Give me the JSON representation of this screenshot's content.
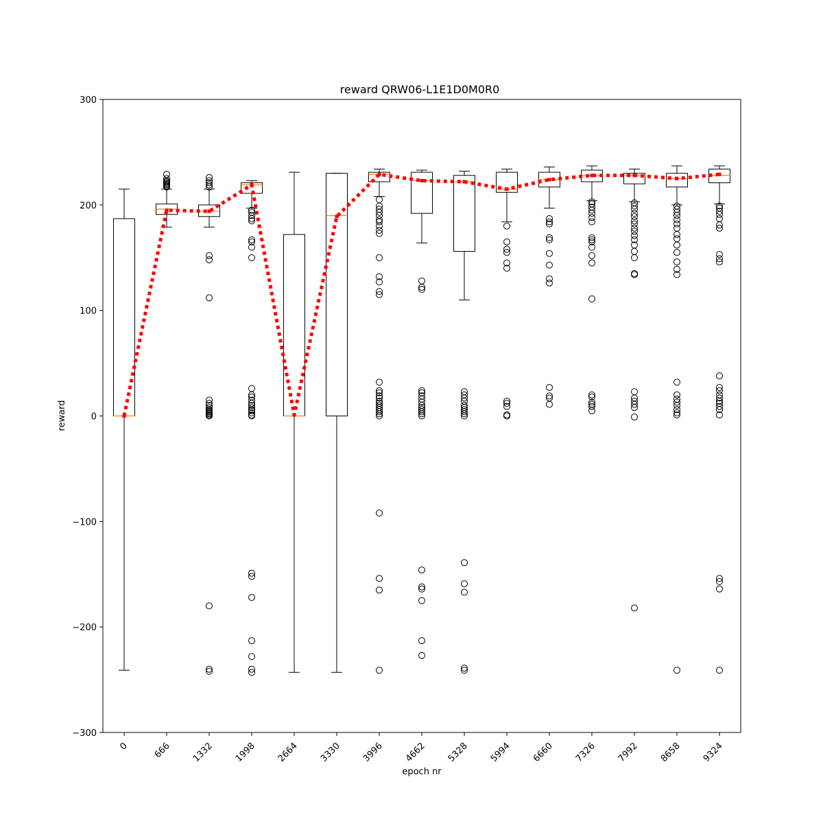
{
  "chart_data": {
    "type": "box",
    "title": "reward QRW06-L1E1D0M0R0",
    "xlabel": "epoch nr",
    "ylabel": "reward",
    "ylim": [
      -300,
      300
    ],
    "yticks": [
      -300,
      -200,
      -100,
      0,
      100,
      200,
      300
    ],
    "ytick_labels": [
      "−300",
      "−200",
      "−100",
      "0",
      "100",
      "200",
      "300"
    ],
    "categories": [
      "0",
      "666",
      "1332",
      "1998",
      "2664",
      "3330",
      "3996",
      "4662",
      "5328",
      "5994",
      "6660",
      "7326",
      "7992",
      "8658",
      "9324"
    ],
    "grid": false,
    "colors": {
      "box": "#000000",
      "median": "#ff7f0e",
      "mean_line": "#ff0000",
      "flier": "#000000"
    },
    "boxes": [
      {
        "whislo": -241,
        "q1": 0,
        "med": 0,
        "q3": 187,
        "whishi": 215,
        "fliers": []
      },
      {
        "whislo": 179,
        "q1": 191,
        "med": 196,
        "q3": 201,
        "whishi": 215,
        "fliers": [
          217,
          218,
          219,
          220,
          221,
          222,
          223,
          225,
          229
        ]
      },
      {
        "whislo": 179,
        "q1": 189,
        "med": 194,
        "q3": 200,
        "whishi": 215,
        "fliers": [
          217,
          219,
          221,
          223,
          226,
          152,
          148,
          112,
          15,
          12,
          10,
          8,
          6,
          5,
          4,
          3,
          2,
          1,
          0,
          -180,
          -240,
          -242
        ]
      },
      {
        "whislo": 197,
        "q1": 211,
        "med": 219,
        "q3": 221,
        "whishi": 223,
        "fliers": [
          195,
          193,
          190,
          187,
          185,
          167,
          165,
          160,
          150,
          26,
          20,
          18,
          15,
          12,
          10,
          8,
          6,
          5,
          3,
          1,
          0,
          -149,
          -152,
          -172,
          -213,
          -228,
          -240,
          -243
        ]
      },
      {
        "whislo": -243,
        "q1": 0,
        "med": 0,
        "q3": 172,
        "whishi": 231,
        "fliers": []
      },
      {
        "whislo": -243,
        "q1": 0,
        "med": 190,
        "q3": 230,
        "whishi": 230,
        "fliers": []
      },
      {
        "whislo": 208,
        "q1": 222,
        "med": 229,
        "q3": 231,
        "whishi": 234,
        "fliers": [
          205,
          199,
          196,
          193,
          190,
          186,
          184,
          180,
          176,
          173,
          150,
          132,
          127,
          118,
          115,
          32,
          24,
          22,
          19,
          17,
          14,
          12,
          10,
          8,
          6,
          4,
          2,
          0,
          -92,
          -154,
          -165,
          -241
        ]
      },
      {
        "whislo": 164,
        "q1": 192,
        "med": 223,
        "q3": 231,
        "whishi": 233,
        "fliers": [
          128,
          122,
          120,
          24,
          22,
          19,
          16,
          13,
          10,
          8,
          6,
          4,
          2,
          0,
          -146,
          -162,
          -164,
          -175,
          -213,
          -227
        ]
      },
      {
        "whislo": 110,
        "q1": 156,
        "med": 222,
        "q3": 228,
        "whishi": 232,
        "fliers": [
          23,
          20,
          17,
          14,
          10,
          8,
          6,
          4,
          2,
          0,
          -139,
          -159,
          -167,
          -239,
          -241
        ]
      },
      {
        "whislo": 184,
        "q1": 212,
        "med": 215,
        "q3": 231,
        "whishi": 234,
        "fliers": [
          180,
          165,
          158,
          155,
          145,
          140,
          14,
          12,
          9,
          1,
          0
        ]
      },
      {
        "whislo": 197,
        "q1": 217,
        "med": 224,
        "q3": 231,
        "whishi": 236,
        "fliers": [
          187,
          184,
          182,
          169,
          167,
          154,
          143,
          130,
          126,
          27,
          19,
          17,
          11
        ]
      },
      {
        "whislo": 204,
        "q1": 222,
        "med": 228,
        "q3": 233,
        "whishi": 237,
        "fliers": [
          203,
          201,
          198,
          195,
          192,
          188,
          184,
          169,
          167,
          165,
          160,
          152,
          145,
          111,
          20,
          18,
          13,
          11,
          9,
          5
        ]
      },
      {
        "whislo": 203,
        "q1": 220,
        "med": 228,
        "q3": 230,
        "whishi": 234,
        "fliers": [
          202,
          199,
          196,
          192,
          189,
          185,
          182,
          178,
          175,
          171,
          167,
          162,
          156,
          150,
          135,
          134,
          23,
          17,
          14,
          11,
          8,
          -1,
          -182
        ]
      },
      {
        "whislo": 200,
        "q1": 217,
        "med": 225,
        "q3": 230,
        "whishi": 237,
        "fliers": [
          199,
          196,
          193,
          190,
          186,
          182,
          178,
          172,
          168,
          162,
          155,
          146,
          139,
          134,
          32,
          20,
          16,
          13,
          10,
          6,
          3,
          1,
          -241
        ]
      },
      {
        "whislo": 201,
        "q1": 221,
        "med": 228,
        "q3": 234,
        "whishi": 237,
        "fliers": [
          199,
          197,
          194,
          191,
          187,
          181,
          178,
          153,
          149,
          146,
          38,
          27,
          24,
          20,
          17,
          14,
          12,
          9,
          6,
          1,
          -154,
          -157,
          -164,
          -241
        ]
      }
    ],
    "mean_line": {
      "style": "dotted",
      "values": [
        0,
        195,
        194,
        219,
        1,
        189,
        229,
        223,
        222,
        215,
        224,
        228,
        228,
        225,
        229
      ]
    }
  }
}
